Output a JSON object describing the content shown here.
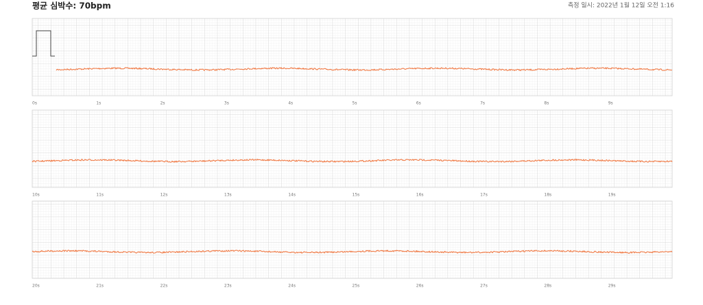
{
  "header": {
    "title": "평균 심박수: 70bpm",
    "timestamp": "측정 일시: 2022년 1월 12일 오전 1:16"
  },
  "strips": [
    {
      "labels": [
        "0s",
        "1s",
        "2s",
        "3s",
        "4s",
        "5s",
        "6s",
        "7s",
        "8s",
        "9s"
      ]
    },
    {
      "labels": [
        "10s",
        "11s",
        "12s",
        "13s",
        "14s",
        "15s",
        "16s",
        "17s",
        "18s",
        "19s"
      ]
    },
    {
      "labels": [
        "20s",
        "21s",
        "22s",
        "23s",
        "24s",
        "25s",
        "26s",
        "27s",
        "28s",
        "29s"
      ]
    }
  ]
}
